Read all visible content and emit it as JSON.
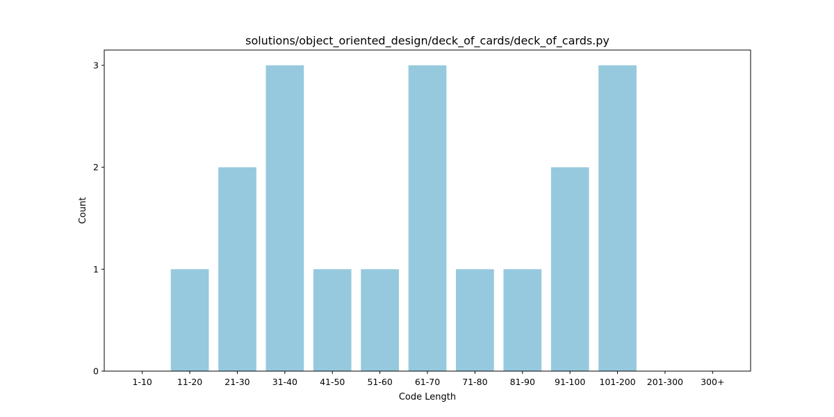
{
  "chart_data": {
    "type": "bar",
    "title": "solutions/object_oriented_design/deck_of_cards/deck_of_cards.py",
    "xlabel": "Code Length",
    "ylabel": "Count",
    "categories": [
      "1-10",
      "11-20",
      "21-30",
      "31-40",
      "41-50",
      "51-60",
      "61-70",
      "71-80",
      "81-90",
      "91-100",
      "101-200",
      "201-300",
      "300+"
    ],
    "values": [
      0,
      1,
      2,
      3,
      1,
      1,
      3,
      1,
      1,
      2,
      3,
      0,
      0
    ],
    "ylim": [
      0,
      3.15
    ],
    "yticks": [
      0,
      1,
      2,
      3
    ],
    "bar_color": "#96c9dd",
    "grid": false,
    "legend": "none"
  }
}
